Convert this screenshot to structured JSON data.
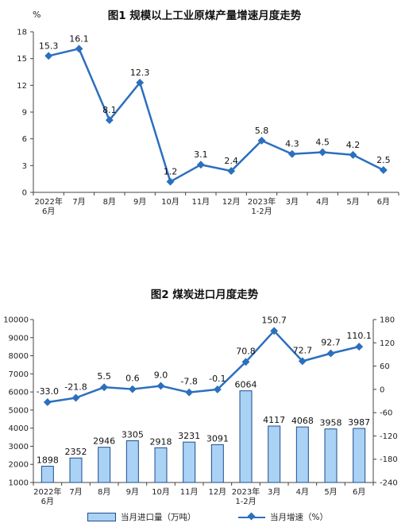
{
  "chart_data": [
    {
      "type": "line",
      "title": "图1  规模以上工业原煤产量增速月度走势",
      "ylabel": "%",
      "ylim": [
        0,
        18
      ],
      "yticks": [
        0,
        3,
        6,
        9,
        12,
        15,
        18
      ],
      "categories": [
        [
          "2022年",
          "6月"
        ],
        [
          "7月"
        ],
        [
          "8月"
        ],
        [
          "9月"
        ],
        [
          "10月"
        ],
        [
          "11月"
        ],
        [
          "12月"
        ],
        [
          "2023年",
          "1-2月"
        ],
        [
          "3月"
        ],
        [
          "4月"
        ],
        [
          "5月"
        ],
        [
          "6月"
        ]
      ],
      "series": [
        {
          "values": [
            15.3,
            16.1,
            8.1,
            12.3,
            1.2,
            3.1,
            2.4,
            5.8,
            4.3,
            4.5,
            4.2,
            2.5
          ],
          "color": "#2c6fbe"
        }
      ],
      "labels": [
        "15.3",
        "16.1",
        "8.1",
        "12.3",
        "1.2",
        "3.1",
        "2.4",
        "5.8",
        "4.3",
        "4.5",
        "4.2",
        "2.5"
      ]
    },
    {
      "type": "bar",
      "title": "图2  煤炭进口月度走势",
      "ylim_left": [
        1000,
        10000
      ],
      "yticks_left": [
        1000,
        2000,
        3000,
        4000,
        5000,
        6000,
        7000,
        8000,
        9000,
        10000
      ],
      "ylim_right": [
        -240,
        180
      ],
      "yticks_right": [
        -240,
        -180,
        -120,
        -60,
        0,
        60,
        120,
        180
      ],
      "categories": [
        [
          "2022年",
          "6月"
        ],
        [
          "7月"
        ],
        [
          "8月"
        ],
        [
          "9月"
        ],
        [
          "10月"
        ],
        [
          "11月"
        ],
        [
          "12月"
        ],
        [
          "2023年",
          "1-2月"
        ],
        [
          "3月"
        ],
        [
          "4月"
        ],
        [
          "5月"
        ],
        [
          "6月"
        ]
      ],
      "series": [
        {
          "name": "当月进口量（万吨）",
          "type": "bar",
          "axis": "left",
          "values": [
            1898,
            2352,
            2946,
            3305,
            2918,
            3231,
            3091,
            6064,
            4117,
            4068,
            3958,
            3987
          ],
          "color": "#a9d2f5",
          "edge": "#1f4e8c"
        },
        {
          "name": "当月增速（%）",
          "type": "line",
          "axis": "right",
          "values": [
            -33.0,
            -21.8,
            5.5,
            0.6,
            9.0,
            -7.8,
            -0.1,
            70.8,
            150.7,
            72.7,
            92.7,
            110.1
          ],
          "color": "#2c6fbe"
        }
      ],
      "bar_labels": [
        "1898",
        "2352",
        "2946",
        "3305",
        "2918",
        "3231",
        "3091",
        "6064",
        "4117",
        "4068",
        "3958",
        "3987"
      ],
      "line_labels": [
        "-33.0",
        "-21.8",
        "5.5",
        "0.6",
        "9.0",
        "-7.8",
        "-0.1",
        "70.8",
        "150.7",
        "72.7",
        "92.7",
        "110.1"
      ],
      "legend": [
        "当月进口量（万吨）",
        "当月增速（%）"
      ]
    }
  ]
}
